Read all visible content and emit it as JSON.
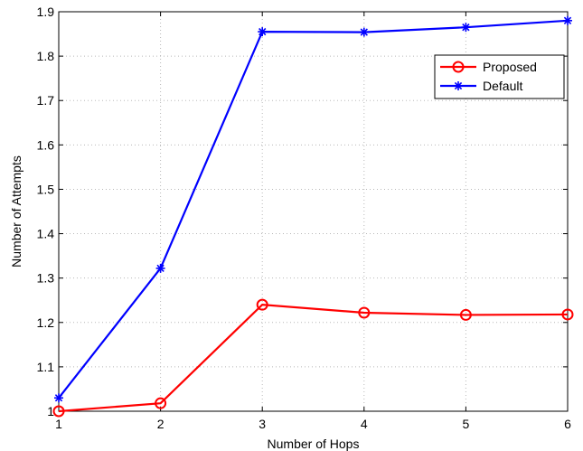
{
  "chart_data": {
    "type": "line",
    "title": "",
    "xlabel": "Number of Hops",
    "ylabel": "Number of Attempts",
    "xlim": [
      1,
      6
    ],
    "ylim": [
      1,
      1.9
    ],
    "x_ticks": [
      "1",
      "2",
      "3",
      "4",
      "5",
      "6"
    ],
    "y_ticks": [
      "1",
      "1.1",
      "1.2",
      "1.3",
      "1.4",
      "1.5",
      "1.6",
      "1.7",
      "1.8",
      "1.9"
    ],
    "grid": true,
    "legend_position": "top-right",
    "x": [
      1,
      2,
      3,
      4,
      5,
      6
    ],
    "series": [
      {
        "name": "Proposed",
        "color": "#ff0000",
        "marker": "circle",
        "values": [
          1.0,
          1.018,
          1.24,
          1.222,
          1.217,
          1.218
        ]
      },
      {
        "name": "Default",
        "color": "#0000ff",
        "marker": "asterisk",
        "values": [
          1.03,
          1.322,
          1.855,
          1.854,
          1.865,
          1.88
        ]
      }
    ]
  }
}
